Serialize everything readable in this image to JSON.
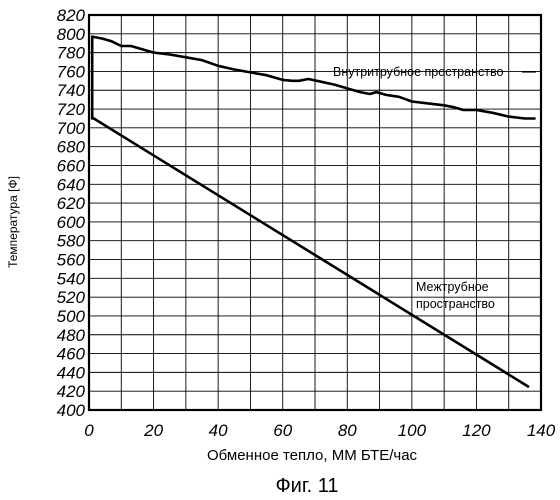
{
  "chart_data": {
    "type": "line",
    "xlabel": "Обменное тепло, ММ БТЕ/час",
    "ylabel": "Температура [Ф]",
    "xlim": [
      0,
      140
    ],
    "ylim": [
      400,
      820
    ],
    "x_ticks": [
      "0",
      "20",
      "40",
      "60",
      "80",
      "100",
      "120",
      "140"
    ],
    "y_ticks": [
      "400",
      "420",
      "440",
      "460",
      "480",
      "500",
      "520",
      "540",
      "560",
      "580",
      "600",
      "620",
      "640",
      "660",
      "680",
      "700",
      "720",
      "740",
      "760",
      "780",
      "800",
      "820"
    ],
    "grid": true,
    "series": [
      {
        "name": "Внутритрубное пространство",
        "points": [
          [
            1,
            710
          ],
          [
            1,
            797
          ],
          [
            4,
            795
          ],
          [
            7,
            792
          ],
          [
            10,
            787
          ],
          [
            13,
            787
          ],
          [
            17,
            783
          ],
          [
            20,
            780
          ],
          [
            25,
            778
          ],
          [
            30,
            775
          ],
          [
            35,
            772
          ],
          [
            40,
            766
          ],
          [
            45,
            762
          ],
          [
            50,
            759
          ],
          [
            55,
            756
          ],
          [
            60,
            751
          ],
          [
            63,
            750
          ],
          [
            65,
            750
          ],
          [
            68,
            752
          ],
          [
            72,
            749
          ],
          [
            76,
            746
          ],
          [
            80,
            742
          ],
          [
            84,
            738
          ],
          [
            87,
            736
          ],
          [
            89,
            738
          ],
          [
            92,
            735
          ],
          [
            96,
            733
          ],
          [
            100,
            728
          ],
          [
            105,
            726
          ],
          [
            110,
            724
          ],
          [
            113,
            722
          ],
          [
            116,
            719
          ],
          [
            120,
            719
          ],
          [
            125,
            716
          ],
          [
            130,
            712
          ],
          [
            135,
            710
          ],
          [
            138,
            710
          ]
        ]
      },
      {
        "name": "Межтрубное пространство",
        "points": [
          [
            1,
            711
          ],
          [
            136,
            425
          ]
        ]
      }
    ],
    "annotations": [
      {
        "text": "Внутритрубное пространство",
        "lines": [
          "Внутритрубное пространство"
        ]
      },
      {
        "text": "Межтрубное пространство",
        "lines": [
          "Межтрубное",
          "пространство"
        ]
      }
    ]
  },
  "caption": "Фиг. 11"
}
